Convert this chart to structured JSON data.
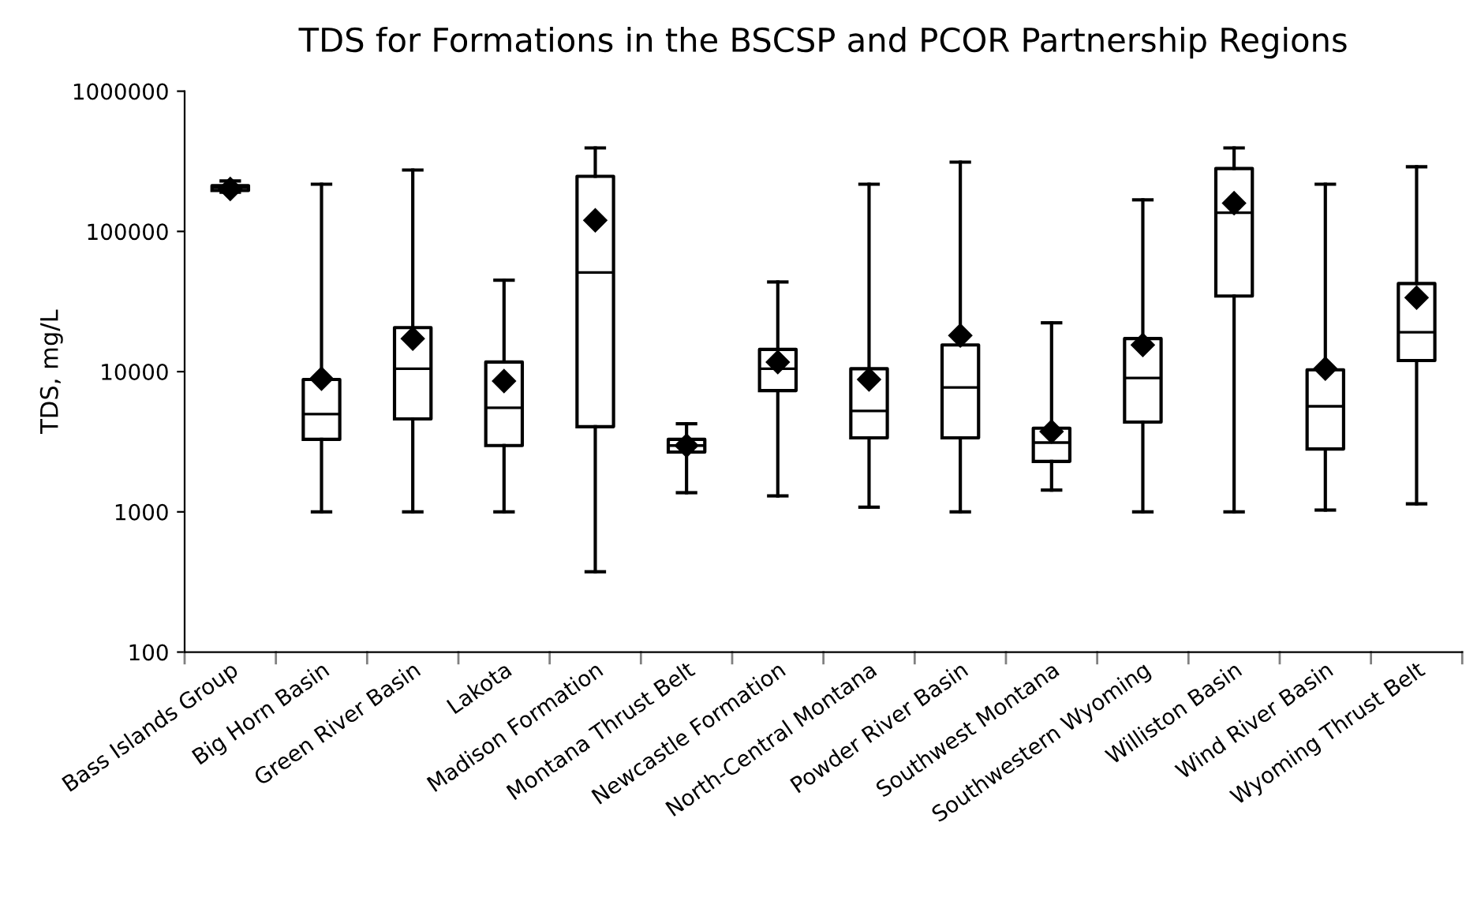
{
  "chart_data": {
    "type": "box",
    "title": "TDS for Formations in the BSCSP and PCOR Partnership Regions",
    "ylabel": "TDS, mg/L",
    "log": "y",
    "ylim": [
      100,
      1000000
    ],
    "yticks": [
      100,
      1000,
      10000,
      100000,
      1000000
    ],
    "grid": false,
    "legend": false,
    "marker": "diamond",
    "color": "#000000",
    "categories": [
      "Bass Islands Group",
      "Big Horn Basin",
      "Green River Basin",
      "Lakota",
      "Madison Formation",
      "Montana Thrust Belt",
      "Newcastle Formation",
      "North-Central Montana",
      "Powder River Basin",
      "Southwest Montana",
      "Southwestern Wyoming",
      "Williston Basin",
      "Wind River Basin",
      "Wyoming Thrust Belt"
    ],
    "boxes": [
      {
        "low": 190000,
        "q1": 196000,
        "median": 206000,
        "q3": 212000,
        "high": 229000,
        "mean": 201000
      },
      {
        "low": 1000,
        "q1": 3290,
        "median": 4980,
        "q3": 8790,
        "high": 217000,
        "mean": 8900
      },
      {
        "low": 1000,
        "q1": 4600,
        "median": 10500,
        "q3": 20600,
        "high": 274000,
        "mean": 17200
      },
      {
        "low": 1000,
        "q1": 2970,
        "median": 5520,
        "q3": 11700,
        "high": 44900,
        "mean": 8570
      },
      {
        "low": 374,
        "q1": 4050,
        "median": 51000,
        "q3": 247000,
        "high": 394000,
        "mean": 120000
      },
      {
        "low": 1370,
        "q1": 2670,
        "median": 2970,
        "q3": 3290,
        "high": 4250,
        "mean": 2970
      },
      {
        "low": 1300,
        "q1": 7330,
        "median": 10500,
        "q3": 14400,
        "high": 43600,
        "mean": 11700
      },
      {
        "low": 1080,
        "q1": 3370,
        "median": 5240,
        "q3": 10500,
        "high": 217000,
        "mean": 8790
      },
      {
        "low": 1000,
        "q1": 3370,
        "median": 7720,
        "q3": 15500,
        "high": 312000,
        "mean": 18100
      },
      {
        "low": 1430,
        "q1": 2290,
        "median": 3120,
        "q3": 3950,
        "high": 22300,
        "mean": 3740
      },
      {
        "low": 1000,
        "q1": 4370,
        "median": 9010,
        "q3": 17200,
        "high": 168000,
        "mean": 15500
      },
      {
        "low": 1000,
        "q1": 34600,
        "median": 136000,
        "q3": 281000,
        "high": 394000,
        "mean": 159000
      },
      {
        "low": 1030,
        "q1": 2810,
        "median": 5660,
        "q3": 10300,
        "high": 217000,
        "mean": 10500
      },
      {
        "low": 1140,
        "q1": 12000,
        "median": 19100,
        "q3": 42500,
        "high": 289000,
        "mean": 33700
      }
    ]
  }
}
